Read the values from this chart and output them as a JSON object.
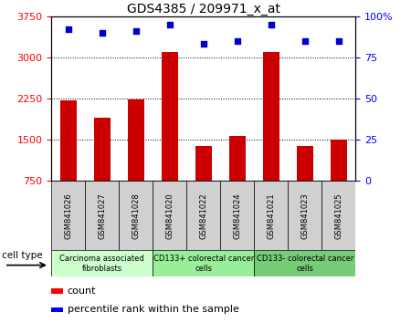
{
  "title": "GDS4385 / 209971_x_at",
  "samples": [
    "GSM841026",
    "GSM841027",
    "GSM841028",
    "GSM841020",
    "GSM841022",
    "GSM841024",
    "GSM841021",
    "GSM841023",
    "GSM841025"
  ],
  "counts": [
    2220,
    1900,
    2230,
    3100,
    1380,
    1560,
    3100,
    1390,
    1500
  ],
  "percentile_ranks": [
    92,
    90,
    91,
    95,
    83,
    85,
    95,
    85,
    85
  ],
  "cell_groups": [
    {
      "label": "Carcinoma associated\nfibroblasts",
      "start": 0,
      "end": 3
    },
    {
      "label": "CD133+ colorectal cancer\ncells",
      "start": 3,
      "end": 6
    },
    {
      "label": "CD133- colorectal cancer\ncells",
      "start": 6,
      "end": 9
    }
  ],
  "group_colors": [
    "#ccffcc",
    "#99ee99",
    "#77cc77"
  ],
  "ylim_left": [
    750,
    3750
  ],
  "ylim_right": [
    0,
    100
  ],
  "yticks_left": [
    750,
    1500,
    2250,
    3000,
    3750
  ],
  "yticks_right": [
    0,
    25,
    50,
    75,
    100
  ],
  "bar_color": "#cc0000",
  "scatter_color": "#0000cc",
  "bar_width": 0.5,
  "background_color": "#ffffff",
  "title_fontsize": 10,
  "tick_fontsize": 8,
  "sample_fontsize": 6,
  "group_fontsize": 6,
  "legend_fontsize": 8
}
